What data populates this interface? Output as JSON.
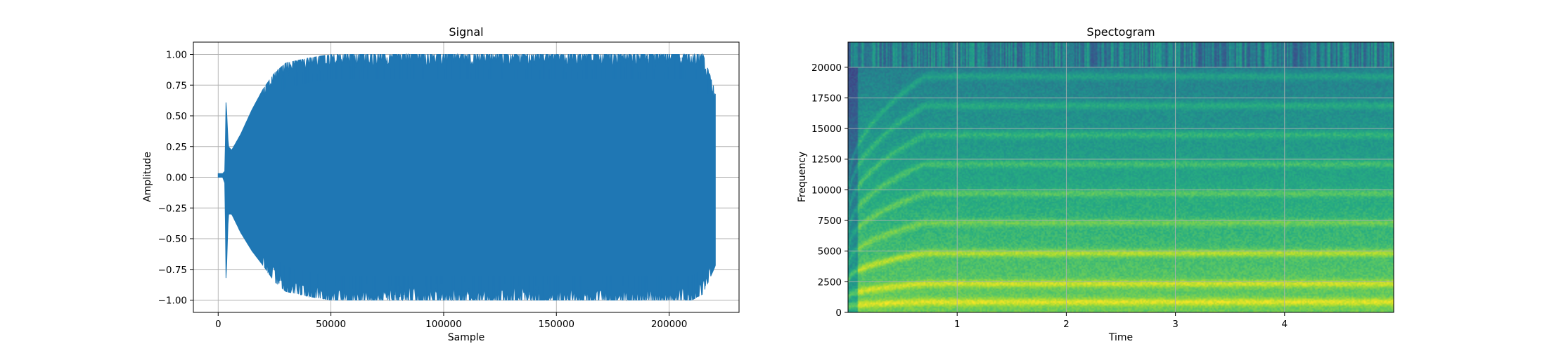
{
  "chart_data": [
    {
      "type": "line",
      "title": "Signal",
      "xlabel": "Sample",
      "ylabel": "Amplitude",
      "xlim": [
        -11000,
        231000
      ],
      "ylim": [
        -1.1,
        1.1
      ],
      "xticks": [
        0,
        50000,
        100000,
        150000,
        200000
      ],
      "xtick_labels": [
        "0",
        "50000",
        "100000",
        "150000",
        "200000"
      ],
      "yticks": [
        1.0,
        0.75,
        0.5,
        0.25,
        0.0,
        -0.25,
        -0.5,
        -0.75,
        -1.0
      ],
      "ytick_labels": [
        "1.00",
        "0.75",
        "0.50",
        "0.25",
        "0.00",
        "−0.25",
        "−0.50",
        "−0.75",
        "−1.00"
      ],
      "grid": true,
      "series": [
        {
          "color": "#1f77b4",
          "sample_count": 220500,
          "envelope": {
            "x": [
              0,
              2000,
              3000,
              3500,
              4500,
              6000,
              10000,
              15000,
              20000,
              25000,
              30000,
              40000,
              50000,
              60000,
              80000,
              100000,
              120000,
              140000,
              160000,
              180000,
              200000,
              210000,
              215000,
              220500
            ],
            "upper": [
              0.03,
              0.03,
              0.05,
              0.63,
              0.25,
              0.22,
              0.35,
              0.55,
              0.72,
              0.85,
              0.93,
              0.97,
              1.0,
              1.0,
              1.0,
              1.0,
              1.0,
              1.0,
              1.0,
              1.0,
              1.0,
              1.0,
              1.0,
              0.7
            ],
            "lower": [
              0.0,
              0.0,
              -0.05,
              -0.85,
              -0.3,
              -0.3,
              -0.45,
              -0.6,
              -0.72,
              -0.85,
              -0.93,
              -0.97,
              -1.0,
              -1.0,
              -1.0,
              -1.0,
              -1.0,
              -1.0,
              -1.0,
              -1.0,
              -1.0,
              -1.0,
              -0.95,
              -0.72
            ]
          }
        }
      ]
    },
    {
      "type": "heatmap",
      "title": "Spectogram",
      "xlabel": "Time",
      "ylabel": "Frequency",
      "xlim": [
        0.0,
        5.0
      ],
      "ylim": [
        0,
        22050
      ],
      "xticks": [
        1,
        2,
        3,
        4
      ],
      "xtick_labels": [
        "1",
        "2",
        "3",
        "4"
      ],
      "yticks": [
        0,
        2500,
        5000,
        7500,
        10000,
        12500,
        15000,
        17500,
        20000
      ],
      "ytick_labels": [
        "0",
        "2500",
        "5000",
        "7500",
        "10000",
        "12500",
        "15000",
        "17500",
        "20000"
      ],
      "grid": true,
      "colormap": "viridis",
      "harmonic_bands_hz": [
        800,
        2300,
        4800,
        7300,
        9700,
        12100,
        14500,
        16900,
        19300
      ],
      "low_energy_band_hz": [
        20000,
        22050
      ]
    }
  ]
}
